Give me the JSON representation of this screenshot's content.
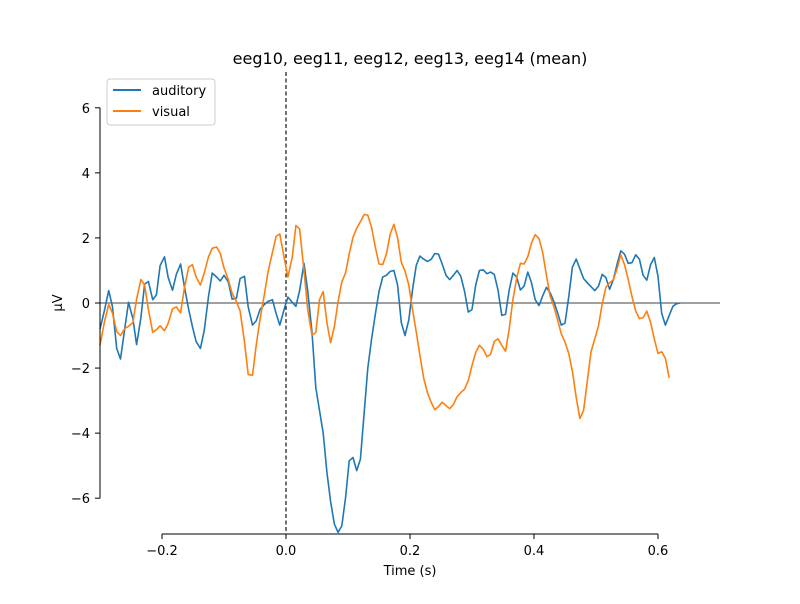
{
  "chart_data": {
    "type": "line",
    "title": "eeg10, eeg11, eeg12, eeg13, eeg14 (mean)",
    "xlabel": "Time (s)",
    "ylabel": "µV",
    "xlim": [
      -0.3,
      0.7
    ],
    "ylim": [
      -7.1,
      7.1
    ],
    "x_ticks": [
      -0.2,
      0.0,
      0.2,
      0.4,
      0.6
    ],
    "x_tick_labels": [
      "−0.2",
      "0.0",
      "0.2",
      "0.4",
      "0.6"
    ],
    "y_ticks": [
      6,
      4,
      2,
      0,
      -2,
      -4,
      -6
    ],
    "y_tick_labels": [
      "6",
      "4",
      "2",
      "0",
      "−2",
      "−4",
      "−6"
    ],
    "legend_position": "top-left",
    "zero_line": true,
    "stimulus_onset_marker": 0.0,
    "series": [
      {
        "name": "auditory",
        "color": "#1f77b4",
        "points": [
          [
            -0.3,
            -0.8
          ],
          [
            -0.293,
            -0.25
          ],
          [
            -0.286,
            0.38
          ],
          [
            -0.28,
            -0.1
          ],
          [
            -0.273,
            -1.4
          ],
          [
            -0.267,
            -1.72
          ],
          [
            -0.26,
            -0.78
          ],
          [
            -0.254,
            0.02
          ],
          [
            -0.247,
            -0.48
          ],
          [
            -0.241,
            -1.28
          ],
          [
            -0.234,
            -0.45
          ],
          [
            -0.228,
            0.58
          ],
          [
            -0.222,
            0.66
          ],
          [
            -0.215,
            0.1
          ],
          [
            -0.209,
            0.25
          ],
          [
            -0.203,
            1.15
          ],
          [
            -0.196,
            1.42
          ],
          [
            -0.19,
            0.78
          ],
          [
            -0.183,
            0.39
          ],
          [
            -0.177,
            0.88
          ],
          [
            -0.17,
            1.2
          ],
          [
            -0.164,
            0.52
          ],
          [
            -0.157,
            -0.2
          ],
          [
            -0.151,
            -0.72
          ],
          [
            -0.145,
            -1.18
          ],
          [
            -0.138,
            -1.4
          ],
          [
            -0.132,
            -0.85
          ],
          [
            -0.125,
            0.2
          ],
          [
            -0.119,
            0.92
          ],
          [
            -0.112,
            0.8
          ],
          [
            -0.106,
            0.68
          ],
          [
            -0.1,
            0.85
          ],
          [
            -0.093,
            0.65
          ],
          [
            -0.087,
            0.12
          ],
          [
            -0.08,
            0.14
          ],
          [
            -0.074,
            0.75
          ],
          [
            -0.067,
            0.82
          ],
          [
            -0.061,
            -0.12
          ],
          [
            -0.054,
            -0.68
          ],
          [
            -0.048,
            -0.55
          ],
          [
            -0.042,
            -0.2
          ],
          [
            -0.035,
            -0.05
          ],
          [
            -0.029,
            0.05
          ],
          [
            -0.022,
            0.1
          ],
          [
            -0.016,
            -0.32
          ],
          [
            -0.01,
            -0.68
          ],
          [
            -0.003,
            -0.2
          ],
          [
            0.003,
            0.18
          ],
          [
            0.01,
            0.02
          ],
          [
            0.016,
            -0.1
          ],
          [
            0.022,
            0.38
          ],
          [
            0.029,
            1.22
          ],
          [
            0.035,
            0.38
          ],
          [
            0.042,
            -0.9
          ],
          [
            0.048,
            -2.6
          ],
          [
            0.054,
            -3.3
          ],
          [
            0.06,
            -4.0
          ],
          [
            0.066,
            -5.2
          ],
          [
            0.072,
            -6.1
          ],
          [
            0.078,
            -6.8
          ],
          [
            0.084,
            -7.05
          ],
          [
            0.09,
            -6.85
          ],
          [
            0.096,
            -6.0
          ],
          [
            0.102,
            -4.85
          ],
          [
            0.108,
            -4.75
          ],
          [
            0.114,
            -5.15
          ],
          [
            0.12,
            -4.8
          ],
          [
            0.126,
            -3.4
          ],
          [
            0.132,
            -2.0
          ],
          [
            0.138,
            -1.1
          ],
          [
            0.144,
            -0.35
          ],
          [
            0.15,
            0.35
          ],
          [
            0.156,
            0.8
          ],
          [
            0.162,
            0.85
          ],
          [
            0.168,
            0.97
          ],
          [
            0.174,
            1.0
          ],
          [
            0.18,
            0.55
          ],
          [
            0.186,
            -0.6
          ],
          [
            0.192,
            -1.0
          ],
          [
            0.198,
            -0.52
          ],
          [
            0.204,
            0.4
          ],
          [
            0.21,
            1.15
          ],
          [
            0.216,
            1.44
          ],
          [
            0.222,
            1.35
          ],
          [
            0.228,
            1.28
          ],
          [
            0.234,
            1.34
          ],
          [
            0.24,
            1.52
          ],
          [
            0.246,
            1.5
          ],
          [
            0.252,
            1.2
          ],
          [
            0.258,
            0.85
          ],
          [
            0.264,
            0.72
          ],
          [
            0.27,
            0.85
          ],
          [
            0.276,
            1.0
          ],
          [
            0.282,
            0.82
          ],
          [
            0.288,
            0.35
          ],
          [
            0.294,
            -0.28
          ],
          [
            0.3,
            -0.2
          ],
          [
            0.306,
            0.55
          ],
          [
            0.312,
            1.0
          ],
          [
            0.318,
            1.02
          ],
          [
            0.324,
            0.9
          ],
          [
            0.33,
            0.95
          ],
          [
            0.336,
            0.88
          ],
          [
            0.342,
            0.4
          ],
          [
            0.348,
            -0.38
          ],
          [
            0.354,
            -0.35
          ],
          [
            0.36,
            0.4
          ],
          [
            0.366,
            0.92
          ],
          [
            0.372,
            0.8
          ],
          [
            0.378,
            0.4
          ],
          [
            0.384,
            0.52
          ],
          [
            0.39,
            0.95
          ],
          [
            0.396,
            0.62
          ],
          [
            0.402,
            0.1
          ],
          [
            0.408,
            -0.08
          ],
          [
            0.414,
            0.22
          ],
          [
            0.42,
            0.48
          ],
          [
            0.426,
            0.32
          ],
          [
            0.432,
            0.05
          ],
          [
            0.438,
            -0.3
          ],
          [
            0.444,
            -0.68
          ],
          [
            0.45,
            -0.62
          ],
          [
            0.456,
            0.18
          ],
          [
            0.462,
            1.1
          ],
          [
            0.468,
            1.35
          ],
          [
            0.474,
            1.05
          ],
          [
            0.48,
            0.75
          ],
          [
            0.486,
            0.62
          ],
          [
            0.492,
            0.5
          ],
          [
            0.498,
            0.38
          ],
          [
            0.504,
            0.52
          ],
          [
            0.51,
            0.88
          ],
          [
            0.516,
            0.78
          ],
          [
            0.522,
            0.42
          ],
          [
            0.528,
            0.72
          ],
          [
            0.534,
            1.2
          ],
          [
            0.54,
            1.6
          ],
          [
            0.546,
            1.5
          ],
          [
            0.552,
            1.22
          ],
          [
            0.558,
            1.24
          ],
          [
            0.564,
            1.48
          ],
          [
            0.57,
            1.35
          ],
          [
            0.576,
            0.85
          ],
          [
            0.582,
            0.7
          ],
          [
            0.588,
            1.18
          ],
          [
            0.594,
            1.4
          ],
          [
            0.6,
            0.82
          ],
          [
            0.606,
            -0.32
          ],
          [
            0.612,
            -0.68
          ],
          [
            0.618,
            -0.38
          ],
          [
            0.624,
            -0.1
          ],
          [
            0.63,
            -0.02
          ],
          [
            0.636,
            0.0
          ]
        ]
      },
      {
        "name": "visual",
        "color": "#ff7f0e",
        "points": [
          [
            -0.3,
            -1.3
          ],
          [
            -0.293,
            -0.6
          ],
          [
            -0.286,
            -0.05
          ],
          [
            -0.28,
            -0.3
          ],
          [
            -0.273,
            -0.88
          ],
          [
            -0.267,
            -1.0
          ],
          [
            -0.26,
            -0.78
          ],
          [
            -0.254,
            -0.72
          ],
          [
            -0.247,
            -0.6
          ],
          [
            -0.241,
            0.12
          ],
          [
            -0.234,
            0.72
          ],
          [
            -0.228,
            0.55
          ],
          [
            -0.222,
            -0.2
          ],
          [
            -0.215,
            -0.9
          ],
          [
            -0.209,
            -0.82
          ],
          [
            -0.203,
            -0.7
          ],
          [
            -0.196,
            -0.85
          ],
          [
            -0.19,
            -0.62
          ],
          [
            -0.183,
            -0.18
          ],
          [
            -0.177,
            -0.12
          ],
          [
            -0.17,
            -0.3
          ],
          [
            -0.164,
            0.45
          ],
          [
            -0.157,
            1.1
          ],
          [
            -0.151,
            1.18
          ],
          [
            -0.145,
            0.8
          ],
          [
            -0.138,
            0.55
          ],
          [
            -0.132,
            0.92
          ],
          [
            -0.125,
            1.42
          ],
          [
            -0.119,
            1.68
          ],
          [
            -0.112,
            1.72
          ],
          [
            -0.106,
            1.52
          ],
          [
            -0.1,
            1.08
          ],
          [
            -0.093,
            0.72
          ],
          [
            -0.087,
            0.3
          ],
          [
            -0.08,
            0.05
          ],
          [
            -0.074,
            -0.25
          ],
          [
            -0.067,
            -1.2
          ],
          [
            -0.061,
            -2.2
          ],
          [
            -0.054,
            -2.22
          ],
          [
            -0.048,
            -1.3
          ],
          [
            -0.042,
            -0.5
          ],
          [
            -0.035,
            0.25
          ],
          [
            -0.029,
            0.95
          ],
          [
            -0.022,
            1.55
          ],
          [
            -0.016,
            2.05
          ],
          [
            -0.01,
            2.12
          ],
          [
            -0.003,
            1.4
          ],
          [
            0.003,
            0.8
          ],
          [
            0.01,
            1.4
          ],
          [
            0.016,
            2.38
          ],
          [
            0.022,
            2.28
          ],
          [
            0.029,
            1.0
          ],
          [
            0.035,
            -0.2
          ],
          [
            0.042,
            -1.0
          ],
          [
            0.048,
            -0.9
          ],
          [
            0.054,
            0.1
          ],
          [
            0.06,
            0.35
          ],
          [
            0.066,
            -0.6
          ],
          [
            0.072,
            -1.22
          ],
          [
            0.078,
            -0.72
          ],
          [
            0.084,
            0.05
          ],
          [
            0.09,
            0.65
          ],
          [
            0.096,
            0.92
          ],
          [
            0.102,
            1.5
          ],
          [
            0.108,
            2.02
          ],
          [
            0.114,
            2.3
          ],
          [
            0.12,
            2.5
          ],
          [
            0.126,
            2.72
          ],
          [
            0.132,
            2.7
          ],
          [
            0.138,
            2.32
          ],
          [
            0.144,
            1.72
          ],
          [
            0.15,
            1.2
          ],
          [
            0.156,
            1.18
          ],
          [
            0.162,
            1.5
          ],
          [
            0.168,
            2.12
          ],
          [
            0.174,
            2.42
          ],
          [
            0.18,
            2.0
          ],
          [
            0.186,
            1.25
          ],
          [
            0.192,
            0.98
          ],
          [
            0.198,
            0.55
          ],
          [
            0.204,
            -0.2
          ],
          [
            0.21,
            -0.88
          ],
          [
            0.216,
            -1.6
          ],
          [
            0.222,
            -2.3
          ],
          [
            0.228,
            -2.75
          ],
          [
            0.234,
            -3.05
          ],
          [
            0.24,
            -3.28
          ],
          [
            0.246,
            -3.18
          ],
          [
            0.252,
            -3.05
          ],
          [
            0.258,
            -3.15
          ],
          [
            0.264,
            -3.25
          ],
          [
            0.27,
            -3.12
          ],
          [
            0.276,
            -2.88
          ],
          [
            0.282,
            -2.75
          ],
          [
            0.288,
            -2.65
          ],
          [
            0.294,
            -2.38
          ],
          [
            0.3,
            -1.92
          ],
          [
            0.306,
            -1.52
          ],
          [
            0.312,
            -1.3
          ],
          [
            0.318,
            -1.42
          ],
          [
            0.324,
            -1.65
          ],
          [
            0.33,
            -1.58
          ],
          [
            0.336,
            -1.18
          ],
          [
            0.342,
            -1.1
          ],
          [
            0.348,
            -1.3
          ],
          [
            0.354,
            -1.48
          ],
          [
            0.36,
            -0.8
          ],
          [
            0.366,
            0.1
          ],
          [
            0.372,
            0.75
          ],
          [
            0.378,
            1.22
          ],
          [
            0.384,
            1.2
          ],
          [
            0.39,
            1.42
          ],
          [
            0.396,
            1.85
          ],
          [
            0.402,
            2.1
          ],
          [
            0.408,
            1.98
          ],
          [
            0.414,
            1.55
          ],
          [
            0.42,
            0.85
          ],
          [
            0.426,
            0.22
          ],
          [
            0.432,
            -0.1
          ],
          [
            0.438,
            -0.52
          ],
          [
            0.444,
            -0.95
          ],
          [
            0.45,
            -1.2
          ],
          [
            0.456,
            -1.55
          ],
          [
            0.462,
            -2.1
          ],
          [
            0.468,
            -2.9
          ],
          [
            0.474,
            -3.55
          ],
          [
            0.48,
            -3.3
          ],
          [
            0.486,
            -2.4
          ],
          [
            0.492,
            -1.5
          ],
          [
            0.498,
            -1.1
          ],
          [
            0.504,
            -0.7
          ],
          [
            0.51,
            -0.02
          ],
          [
            0.516,
            0.48
          ],
          [
            0.522,
            0.62
          ],
          [
            0.528,
            0.72
          ],
          [
            0.534,
            1.05
          ],
          [
            0.54,
            1.48
          ],
          [
            0.546,
            1.18
          ],
          [
            0.552,
            0.72
          ],
          [
            0.558,
            0.2
          ],
          [
            0.564,
            -0.25
          ],
          [
            0.57,
            -0.48
          ],
          [
            0.576,
            -0.45
          ],
          [
            0.582,
            -0.25
          ],
          [
            0.588,
            -0.6
          ],
          [
            0.594,
            -1.1
          ],
          [
            0.6,
            -1.55
          ],
          [
            0.606,
            -1.5
          ],
          [
            0.612,
            -1.7
          ],
          [
            0.618,
            -2.3
          ]
        ]
      }
    ]
  }
}
